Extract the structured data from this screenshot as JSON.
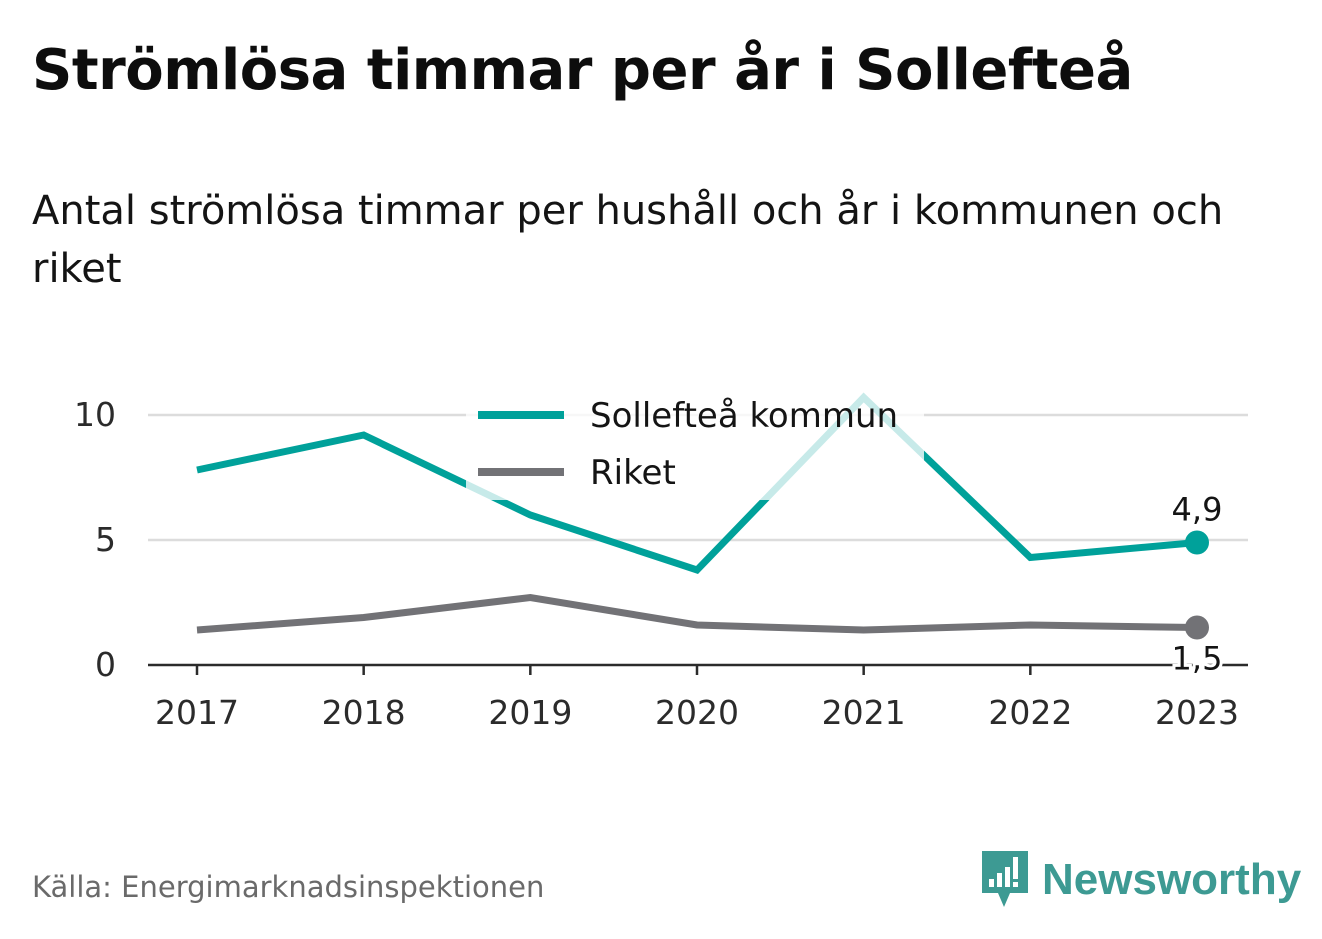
{
  "title": "Strömlösa timmar per år i Sollefteå",
  "subtitle": "Antal strömlösa timmar per hushåll och år i kommunen och riket",
  "source": "Källa: Energimarknadsinspektionen",
  "brand": {
    "name": "Newsworthy",
    "icon": "newsworthy-logo-icon",
    "color": "#3d9a93"
  },
  "chart_data": {
    "type": "line",
    "x": [
      "2017",
      "2018",
      "2019",
      "2020",
      "2021",
      "2022",
      "2023"
    ],
    "ylim": [
      0,
      10
    ],
    "yticks": [
      0,
      5,
      10
    ],
    "ytick_labels": [
      "0",
      "5",
      "10"
    ],
    "grid": true,
    "legend_position": "top-center",
    "series": [
      {
        "name": "Sollefteå kommun",
        "color": "#00a19a",
        "values": [
          7.8,
          9.2,
          6.0,
          3.8,
          10.7,
          4.3,
          4.9
        ],
        "end_label": "4,9"
      },
      {
        "name": "Riket",
        "color": "#727276",
        "values": [
          1.4,
          1.9,
          2.7,
          1.6,
          1.4,
          1.6,
          1.5
        ],
        "end_label": "1,5"
      }
    ]
  }
}
